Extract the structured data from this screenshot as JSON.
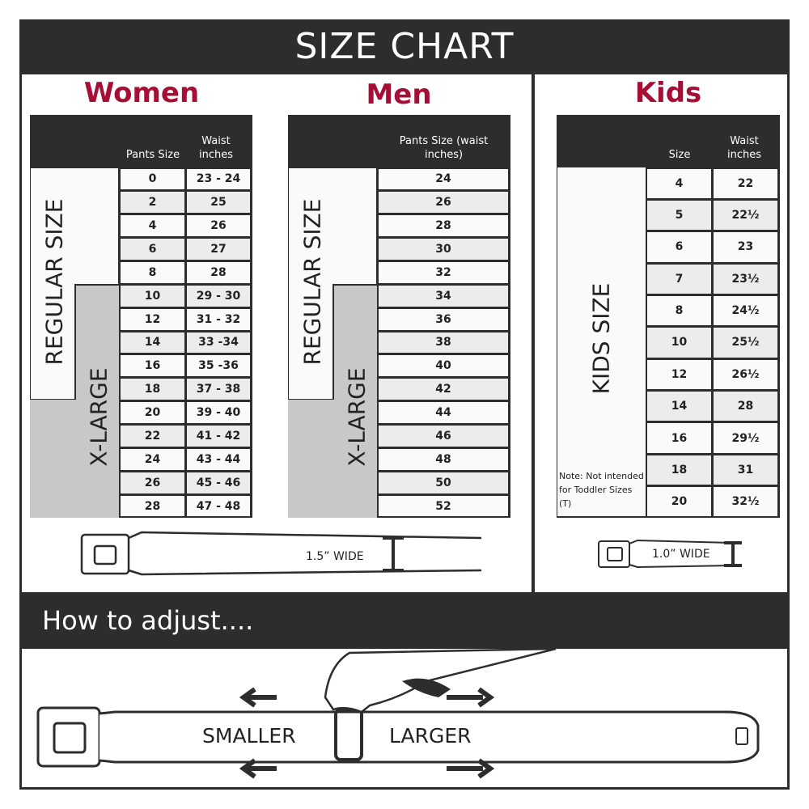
{
  "title": "SIZE CHART",
  "women": {
    "heading": "Women",
    "col1": "Pants Size",
    "col2": "Waist inches",
    "regular_label": "REGULAR SIZE",
    "xlarge_label": "X-LARGE",
    "rows": [
      [
        "0",
        "23 - 24"
      ],
      [
        "2",
        "25"
      ],
      [
        "4",
        "26"
      ],
      [
        "6",
        "27"
      ],
      [
        "8",
        "28"
      ],
      [
        "10",
        "29 - 30"
      ],
      [
        "12",
        "31 - 32"
      ],
      [
        "14",
        "33 -34"
      ],
      [
        "16",
        "35 -36"
      ],
      [
        "18",
        "37 - 38"
      ],
      [
        "20",
        "39 - 40"
      ],
      [
        "22",
        "41 - 42"
      ],
      [
        "24",
        "43 - 44"
      ],
      [
        "26",
        "45 - 46"
      ],
      [
        "28",
        "47 - 48"
      ]
    ],
    "belt_width": "1.5” WIDE"
  },
  "men": {
    "heading": "Men",
    "col1": "Pants Size (waist inches)",
    "regular_label": "REGULAR SIZE",
    "xlarge_label": "X-LARGE",
    "rows": [
      "24",
      "26",
      "28",
      "30",
      "32",
      "34",
      "36",
      "38",
      "40",
      "42",
      "44",
      "46",
      "48",
      "50",
      "52"
    ]
  },
  "kids": {
    "heading": "Kids",
    "col1": "Size",
    "col2": "Waist inches",
    "label": "KIDS SIZE",
    "note": "Note: Not intended for Toddler Sizes (T)",
    "rows": [
      [
        "4",
        "22"
      ],
      [
        "5",
        "22½"
      ],
      [
        "6",
        "23"
      ],
      [
        "7",
        "23½"
      ],
      [
        "8",
        "24½"
      ],
      [
        "10",
        "25½"
      ],
      [
        "12",
        "26½"
      ],
      [
        "14",
        "28"
      ],
      [
        "16",
        "29½"
      ],
      [
        "18",
        "31"
      ],
      [
        "20",
        "32½"
      ]
    ],
    "belt_width": "1.0” WIDE"
  },
  "adjust": {
    "heading": "How to adjust....",
    "smaller": "SMALLER",
    "larger": "LARGER"
  },
  "colors": {
    "dark": "#2d2d2d",
    "accent": "#a50e35",
    "xlarge": "#c8c8c8"
  }
}
